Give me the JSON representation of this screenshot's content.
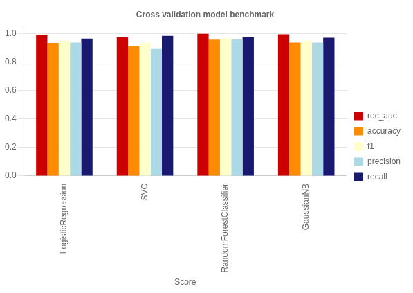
{
  "chart_data": {
    "type": "bar",
    "title": "Cross validation model benchmark",
    "xlabel": "Score",
    "categories": [
      "LogisticRegression",
      "SVC",
      "RandomForestClassifier",
      "GaussianNB"
    ],
    "series": [
      {
        "name": "roc_auc",
        "color": "#cc0000",
        "values": [
          0.993,
          0.975,
          0.999,
          0.996
        ]
      },
      {
        "name": "accuracy",
        "color": "#ff8c00",
        "values": [
          0.935,
          0.912,
          0.958,
          0.938
        ]
      },
      {
        "name": "f1",
        "color": "#ffffcc",
        "values": [
          0.95,
          0.935,
          0.968,
          0.95
        ]
      },
      {
        "name": "precision",
        "color": "#add8e6",
        "values": [
          0.937,
          0.892,
          0.96,
          0.937
        ]
      },
      {
        "name": "recall",
        "color": "#191970",
        "values": [
          0.965,
          0.985,
          0.976,
          0.972
        ]
      }
    ],
    "ylim": [
      0.0,
      1.05
    ],
    "yticks": [
      {
        "value": 0,
        "label": "0.0"
      },
      0.2,
      0.4,
      0.6,
      0.8,
      {
        "value": 1,
        "label": "1.0"
      }
    ],
    "grid": true,
    "legend": "right"
  }
}
